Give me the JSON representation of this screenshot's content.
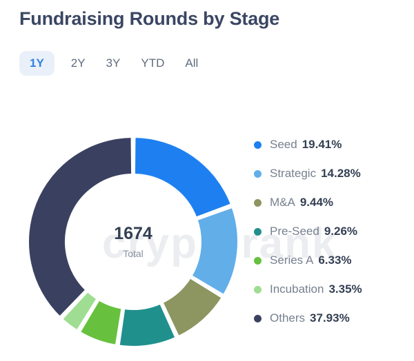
{
  "header": {
    "title": "Fundraising Rounds by Stage"
  },
  "tabs": {
    "items": [
      {
        "label": "1Y",
        "active": true
      },
      {
        "label": "2Y",
        "active": false
      },
      {
        "label": "3Y",
        "active": false
      },
      {
        "label": "YTD",
        "active": false
      },
      {
        "label": "All",
        "active": false
      }
    ]
  },
  "chart_data": {
    "type": "pie",
    "subtype": "donut",
    "title": "Fundraising Rounds by Stage",
    "total_value": "1674",
    "total_label": "Total",
    "start_angle_deg": 0,
    "direction": "clockwise",
    "legend_position": "right",
    "series": [
      {
        "name": "Seed",
        "value": 19.41,
        "display": "19.41%",
        "color": "#1E80F0"
      },
      {
        "name": "Strategic",
        "value": 14.28,
        "display": "14.28%",
        "color": "#62AEE9"
      },
      {
        "name": "M&A",
        "value": 9.44,
        "display": "9.44%",
        "color": "#8D9560"
      },
      {
        "name": "Pre-Seed",
        "value": 9.26,
        "display": "9.26%",
        "color": "#20908D"
      },
      {
        "name": "Series A",
        "value": 6.33,
        "display": "6.33%",
        "color": "#67C13E"
      },
      {
        "name": "Incubation",
        "value": 3.35,
        "display": "3.35%",
        "color": "#9FDD92"
      },
      {
        "name": "Others",
        "value": 37.93,
        "display": "37.93%",
        "color": "#3A4160"
      }
    ]
  },
  "watermark": {
    "text": "cryptorank"
  }
}
